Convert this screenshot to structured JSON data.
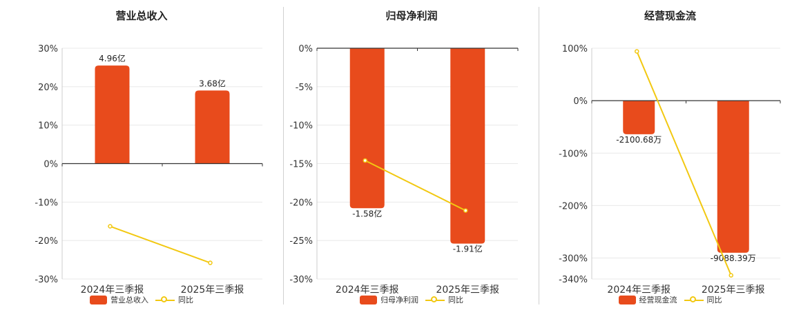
{
  "colors": {
    "bar": "#e84b1c",
    "line": "#f2c811",
    "axis": "#333333",
    "grid": "#e8e8e8",
    "text": "#333333"
  },
  "legend": {
    "line_label": "同比"
  },
  "chart_data": [
    {
      "type": "bar",
      "title": "营业总收入",
      "categories": [
        "2024年三季报",
        "2025年三季报"
      ],
      "series": [
        {
          "name": "营业总收入",
          "type": "bar",
          "values": [
            25.5,
            19.0
          ],
          "labels": [
            "4.96亿",
            "3.68亿"
          ]
        },
        {
          "name": "同比",
          "type": "line",
          "values": [
            -16.3,
            -25.8
          ]
        }
      ],
      "ylim": [
        -30,
        30
      ],
      "yticks": [
        30,
        20,
        10,
        0,
        -10,
        -20,
        -30
      ],
      "ytick_labels": [
        "30%",
        "20%",
        "10%",
        "0%",
        "-10%",
        "-20%",
        "-30%"
      ],
      "grid": true,
      "legend_position": "bottom"
    },
    {
      "type": "bar",
      "title": "归母净利润",
      "categories": [
        "2024年三季报",
        "2025年三季报"
      ],
      "series": [
        {
          "name": "归母净利润",
          "type": "bar",
          "values": [
            -20.8,
            -25.4
          ],
          "labels": [
            "-1.58亿",
            "-1.91亿"
          ]
        },
        {
          "name": "同比",
          "type": "line",
          "values": [
            -14.6,
            -21.1
          ]
        }
      ],
      "ylim": [
        -30,
        0
      ],
      "yticks": [
        0,
        -5,
        -10,
        -15,
        -20,
        -25,
        -30
      ],
      "ytick_labels": [
        "0%",
        "-5%",
        "-10%",
        "-15%",
        "-20%",
        "-25%",
        "-30%"
      ],
      "grid": true,
      "legend_position": "bottom"
    },
    {
      "type": "bar",
      "title": "经营现金流",
      "categories": [
        "2024年三季报",
        "2025年三季报"
      ],
      "series": [
        {
          "name": "经营现金流",
          "type": "bar",
          "values": [
            -64,
            -290
          ],
          "labels": [
            "-2100.68万",
            "-9088.39万"
          ]
        },
        {
          "name": "同比",
          "type": "line",
          "values": [
            94,
            -333
          ]
        }
      ],
      "ylim": [
        -340,
        100
      ],
      "yticks": [
        100,
        0,
        -100,
        -200,
        -300,
        -340
      ],
      "ytick_labels": [
        "100%",
        "0%",
        "-100%",
        "-200%",
        "-300%",
        "-340%"
      ],
      "grid": true,
      "legend_position": "bottom"
    }
  ]
}
